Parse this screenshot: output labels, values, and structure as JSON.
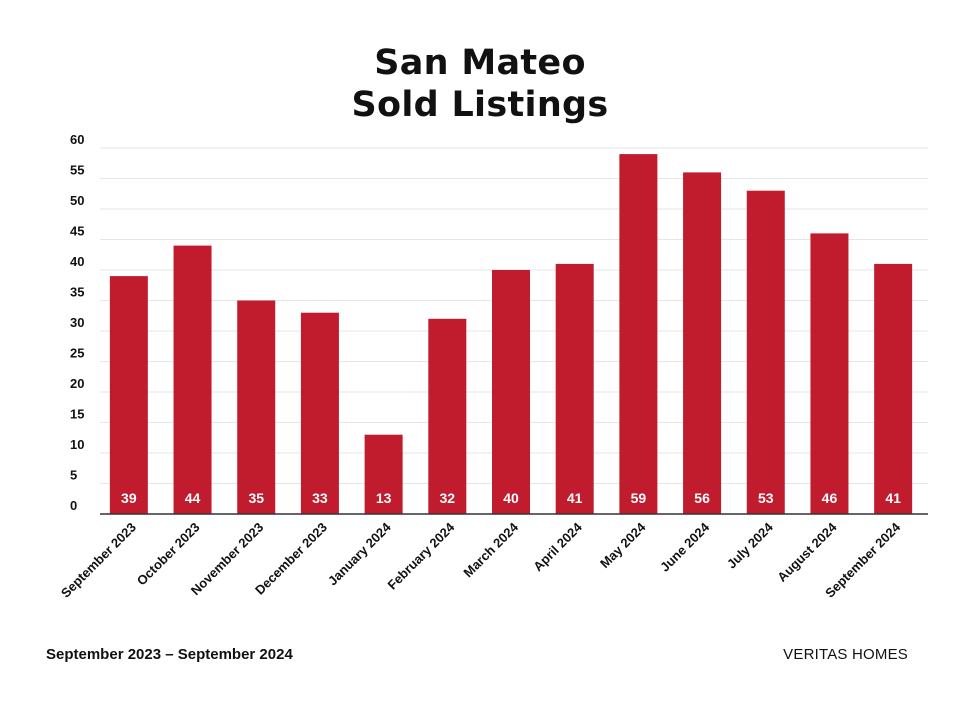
{
  "header": {
    "title_line1": "San Mateo",
    "title_line2": "Sold Listings"
  },
  "footer": {
    "date_range": "September 2023 – September 2024",
    "brand": "VERITAS HOMES"
  },
  "colors": {
    "bar": "#c01c2d",
    "bar_label": "#ffffff",
    "grid": "#e6e6e6",
    "axis": "#333333",
    "text": "#111111"
  },
  "chart_data": {
    "type": "bar",
    "categories": [
      "September 2023",
      "October 2023",
      "November 2023",
      "December 2023",
      "January 2024",
      "February 2024",
      "March 2024",
      "April 2024",
      "May 2024",
      "June 2024",
      "July 2024",
      "August 2024",
      "September 2024"
    ],
    "values": [
      39,
      44,
      35,
      33,
      13,
      32,
      40,
      41,
      59,
      56,
      53,
      46,
      41
    ],
    "ylim": [
      0,
      60
    ],
    "yticks": [
      0,
      5,
      10,
      15,
      20,
      25,
      30,
      35,
      40,
      45,
      50,
      55,
      60
    ],
    "grid": true,
    "data_labels": true,
    "legend": "none"
  }
}
